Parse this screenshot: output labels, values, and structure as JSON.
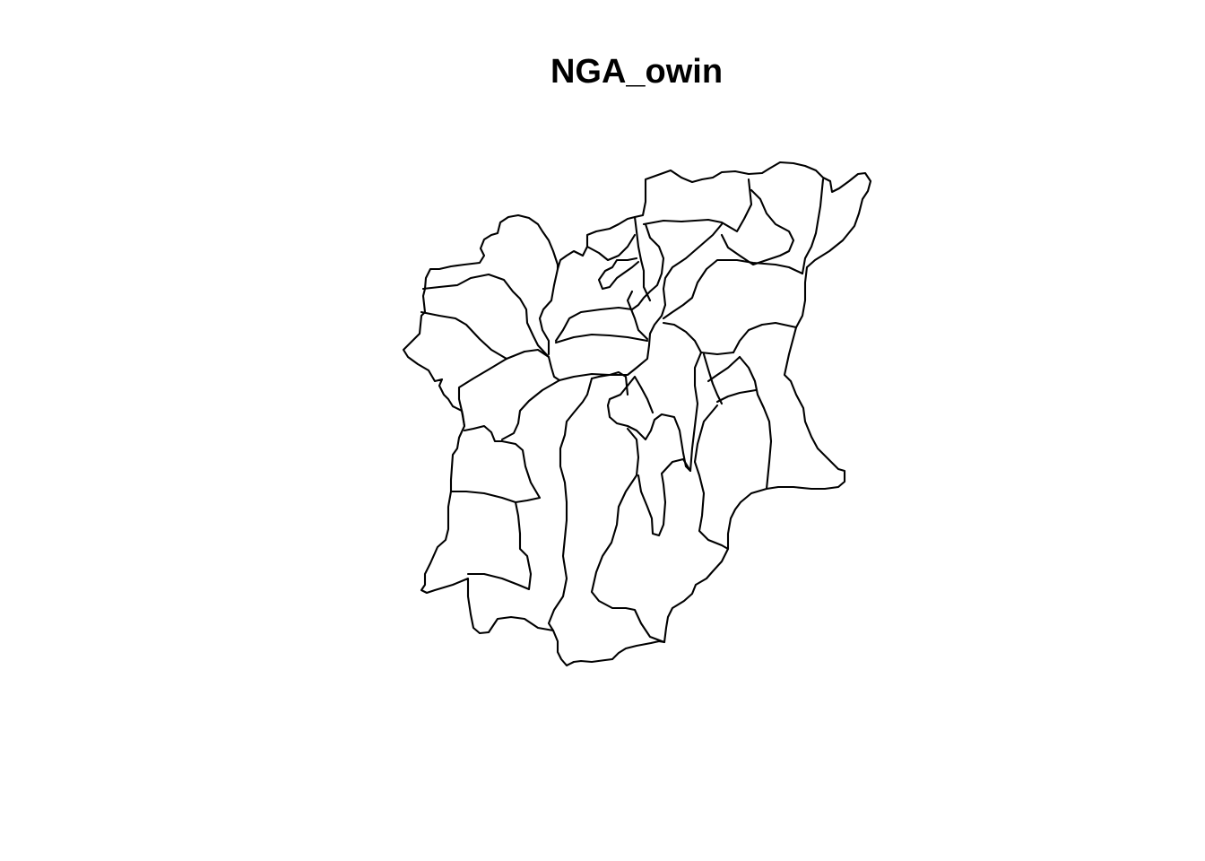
{
  "plot": {
    "title": "NGA_owin",
    "line_color": "#000000",
    "background_color": "#ffffff"
  }
}
